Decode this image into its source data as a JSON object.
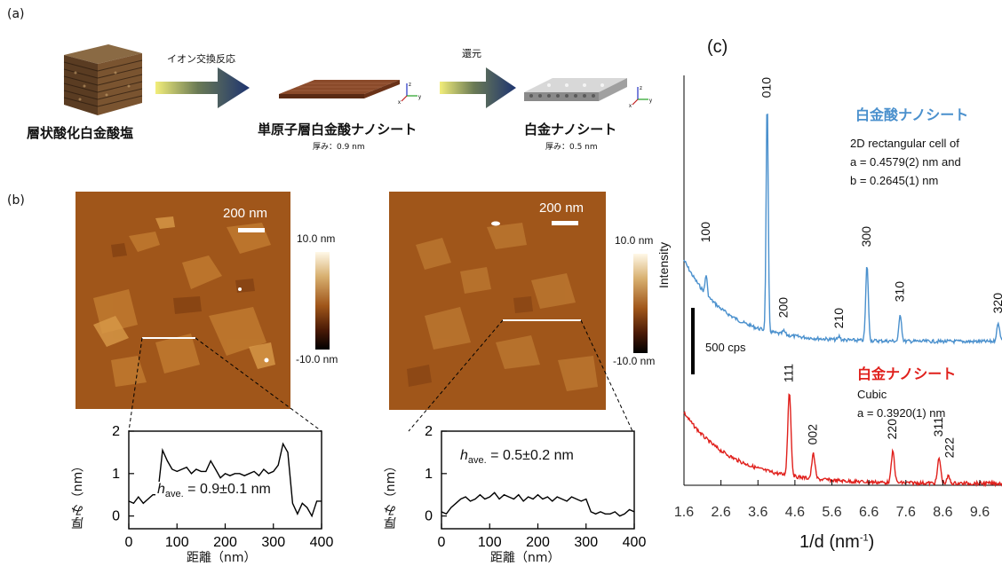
{
  "panel_a": {
    "label": "(a)",
    "arrow1_label": "イオン交換反応",
    "arrow2_label": "還元",
    "item1_label": "層状酸化白金酸塩",
    "item2_label": "単原子層白金酸ナノシート",
    "item2_thickness": "厚み：0.9 nm",
    "item3_label": "白金ナノシート",
    "item3_thickness": "厚み：0.5 nm",
    "axis_z": "z",
    "axis_x": "x",
    "axis_y": "y",
    "colors": {
      "arrow_start": "#f2ee7a",
      "arrow_end": "#1e3470",
      "sheet": "#7a3b22",
      "crystal": "#6b4a2a"
    }
  },
  "panel_b": {
    "label": "(b)",
    "left": {
      "scale_bar": "200 nm",
      "colorbar_max": "10.0 nm",
      "colorbar_min": "-10.0 nm",
      "have_prefix": "h",
      "have_sub": "ave.",
      "have_value": " = 0.9±0.1 nm",
      "ylabel": "厚み（nm）",
      "xlabel": "距離（nm）",
      "yticks": [
        "2",
        "1",
        "0"
      ],
      "xticks": [
        "0",
        "100",
        "200",
        "300",
        "400"
      ]
    },
    "right": {
      "scale_bar": "200 nm",
      "colorbar_max": "10.0 nm",
      "colorbar_min": "-10.0 nm",
      "have_prefix": "h",
      "have_sub": "ave.",
      "have_value": " = 0.5±0.2 nm",
      "ylabel": "厚み（nm）",
      "xlabel": "距離（nm）",
      "yticks": [
        "2",
        "1",
        "0"
      ],
      "xticks": [
        "0",
        "100",
        "200",
        "300",
        "400"
      ]
    },
    "colors": {
      "afm_bg": "#a0561a",
      "colorbar_top": "#fff8e8",
      "colorbar_mid": "#b8862e",
      "colorbar_bottom": "#000000"
    }
  },
  "panel_c": {
    "label": "(c)",
    "ylabel": "Intensity",
    "scale_label": "500 cps",
    "xlabel": "1/d",
    "xunit": "(nm",
    "xunit_sup": "-1",
    "xunit_end": ")",
    "xticks": [
      "1.6",
      "2.6",
      "3.6",
      "4.6",
      "5.6",
      "6.6",
      "7.6",
      "8.6",
      "9.6"
    ],
    "blue_title": "白金酸ナノシート",
    "blue_desc1": "2D rectangular cell of",
    "blue_desc2": "a = 0.4579(2) nm and",
    "blue_desc3": "b = 0.2645(1) nm",
    "red_title": "白金ナノシート",
    "red_desc1": "Cubic",
    "red_desc2": "a = 0.3920(1) nm",
    "blue_peaks": [
      "100",
      "010",
      "200",
      "210",
      "300",
      "310",
      "320"
    ],
    "red_peaks": [
      "111",
      "002",
      "220",
      "311",
      "222"
    ],
    "colors": {
      "blue": "#4a90cd",
      "red": "#e0201c"
    }
  },
  "chart_data": [
    {
      "type": "line",
      "xlabel": "距離（nm）",
      "ylabel": "厚み（nm）",
      "xlim": [
        0,
        400
      ],
      "ylim": [
        -0.3,
        2
      ],
      "series": [
        {
          "x": [
            0,
            10,
            20,
            30,
            40,
            50,
            60,
            70,
            80,
            90,
            100,
            110,
            120,
            130,
            140,
            150,
            160,
            170,
            180,
            190,
            200,
            210,
            220,
            230,
            240,
            250,
            260,
            270,
            280,
            290,
            300,
            310,
            320,
            330,
            340,
            350,
            360,
            370,
            380,
            390,
            400
          ],
          "values": [
            0.35,
            0.3,
            0.45,
            0.3,
            0.4,
            0.5,
            0.5,
            1.55,
            1.3,
            1.1,
            1.05,
            1.1,
            1.15,
            1.0,
            1.1,
            1.05,
            1.05,
            1.3,
            1.1,
            0.9,
            1.0,
            0.95,
            1.0,
            1.0,
            0.95,
            1.0,
            1.05,
            0.95,
            1.1,
            1.0,
            1.05,
            1.2,
            1.7,
            1.5,
            0.3,
            0.05,
            0.3,
            0.2,
            0.0,
            0.35,
            0.35
          ]
        }
      ]
    },
    {
      "type": "line",
      "xlabel": "距離（nm）",
      "ylabel": "厚み（nm）",
      "xlim": [
        0,
        400
      ],
      "ylim": [
        -0.3,
        2
      ],
      "series": [
        {
          "x": [
            0,
            10,
            20,
            30,
            40,
            50,
            60,
            70,
            80,
            90,
            100,
            110,
            120,
            130,
            140,
            150,
            160,
            170,
            180,
            190,
            200,
            210,
            220,
            230,
            240,
            250,
            260,
            270,
            280,
            290,
            300,
            310,
            320,
            330,
            340,
            350,
            360,
            370,
            380,
            390,
            400
          ],
          "values": [
            0.1,
            0.05,
            0.2,
            0.3,
            0.4,
            0.45,
            0.35,
            0.4,
            0.5,
            0.4,
            0.45,
            0.55,
            0.4,
            0.5,
            0.45,
            0.4,
            0.5,
            0.35,
            0.45,
            0.4,
            0.5,
            0.4,
            0.45,
            0.35,
            0.45,
            0.4,
            0.35,
            0.45,
            0.4,
            0.35,
            0.4,
            0.1,
            0.05,
            0.1,
            0.05,
            0.05,
            0.1,
            0.0,
            0.05,
            0.15,
            0.1
          ]
        }
      ]
    },
    {
      "type": "line",
      "xlabel": "1/d (nm-1)",
      "ylabel": "Intensity",
      "xlim": [
        1.6,
        10.2
      ],
      "series": [
        {
          "name": "白金酸ナノシート",
          "peaks_x": [
            2.2,
            3.85,
            4.3,
            5.8,
            6.55,
            7.45,
            10.1
          ],
          "peaks_label": [
            "100",
            "010",
            "200",
            "210",
            "300",
            "310",
            "320"
          ]
        },
        {
          "name": "白金ナノシート",
          "peaks_x": [
            4.45,
            5.1,
            7.25,
            8.5,
            8.75
          ],
          "peaks_label": [
            "111",
            "002",
            "220",
            "311",
            "222"
          ]
        }
      ]
    }
  ]
}
